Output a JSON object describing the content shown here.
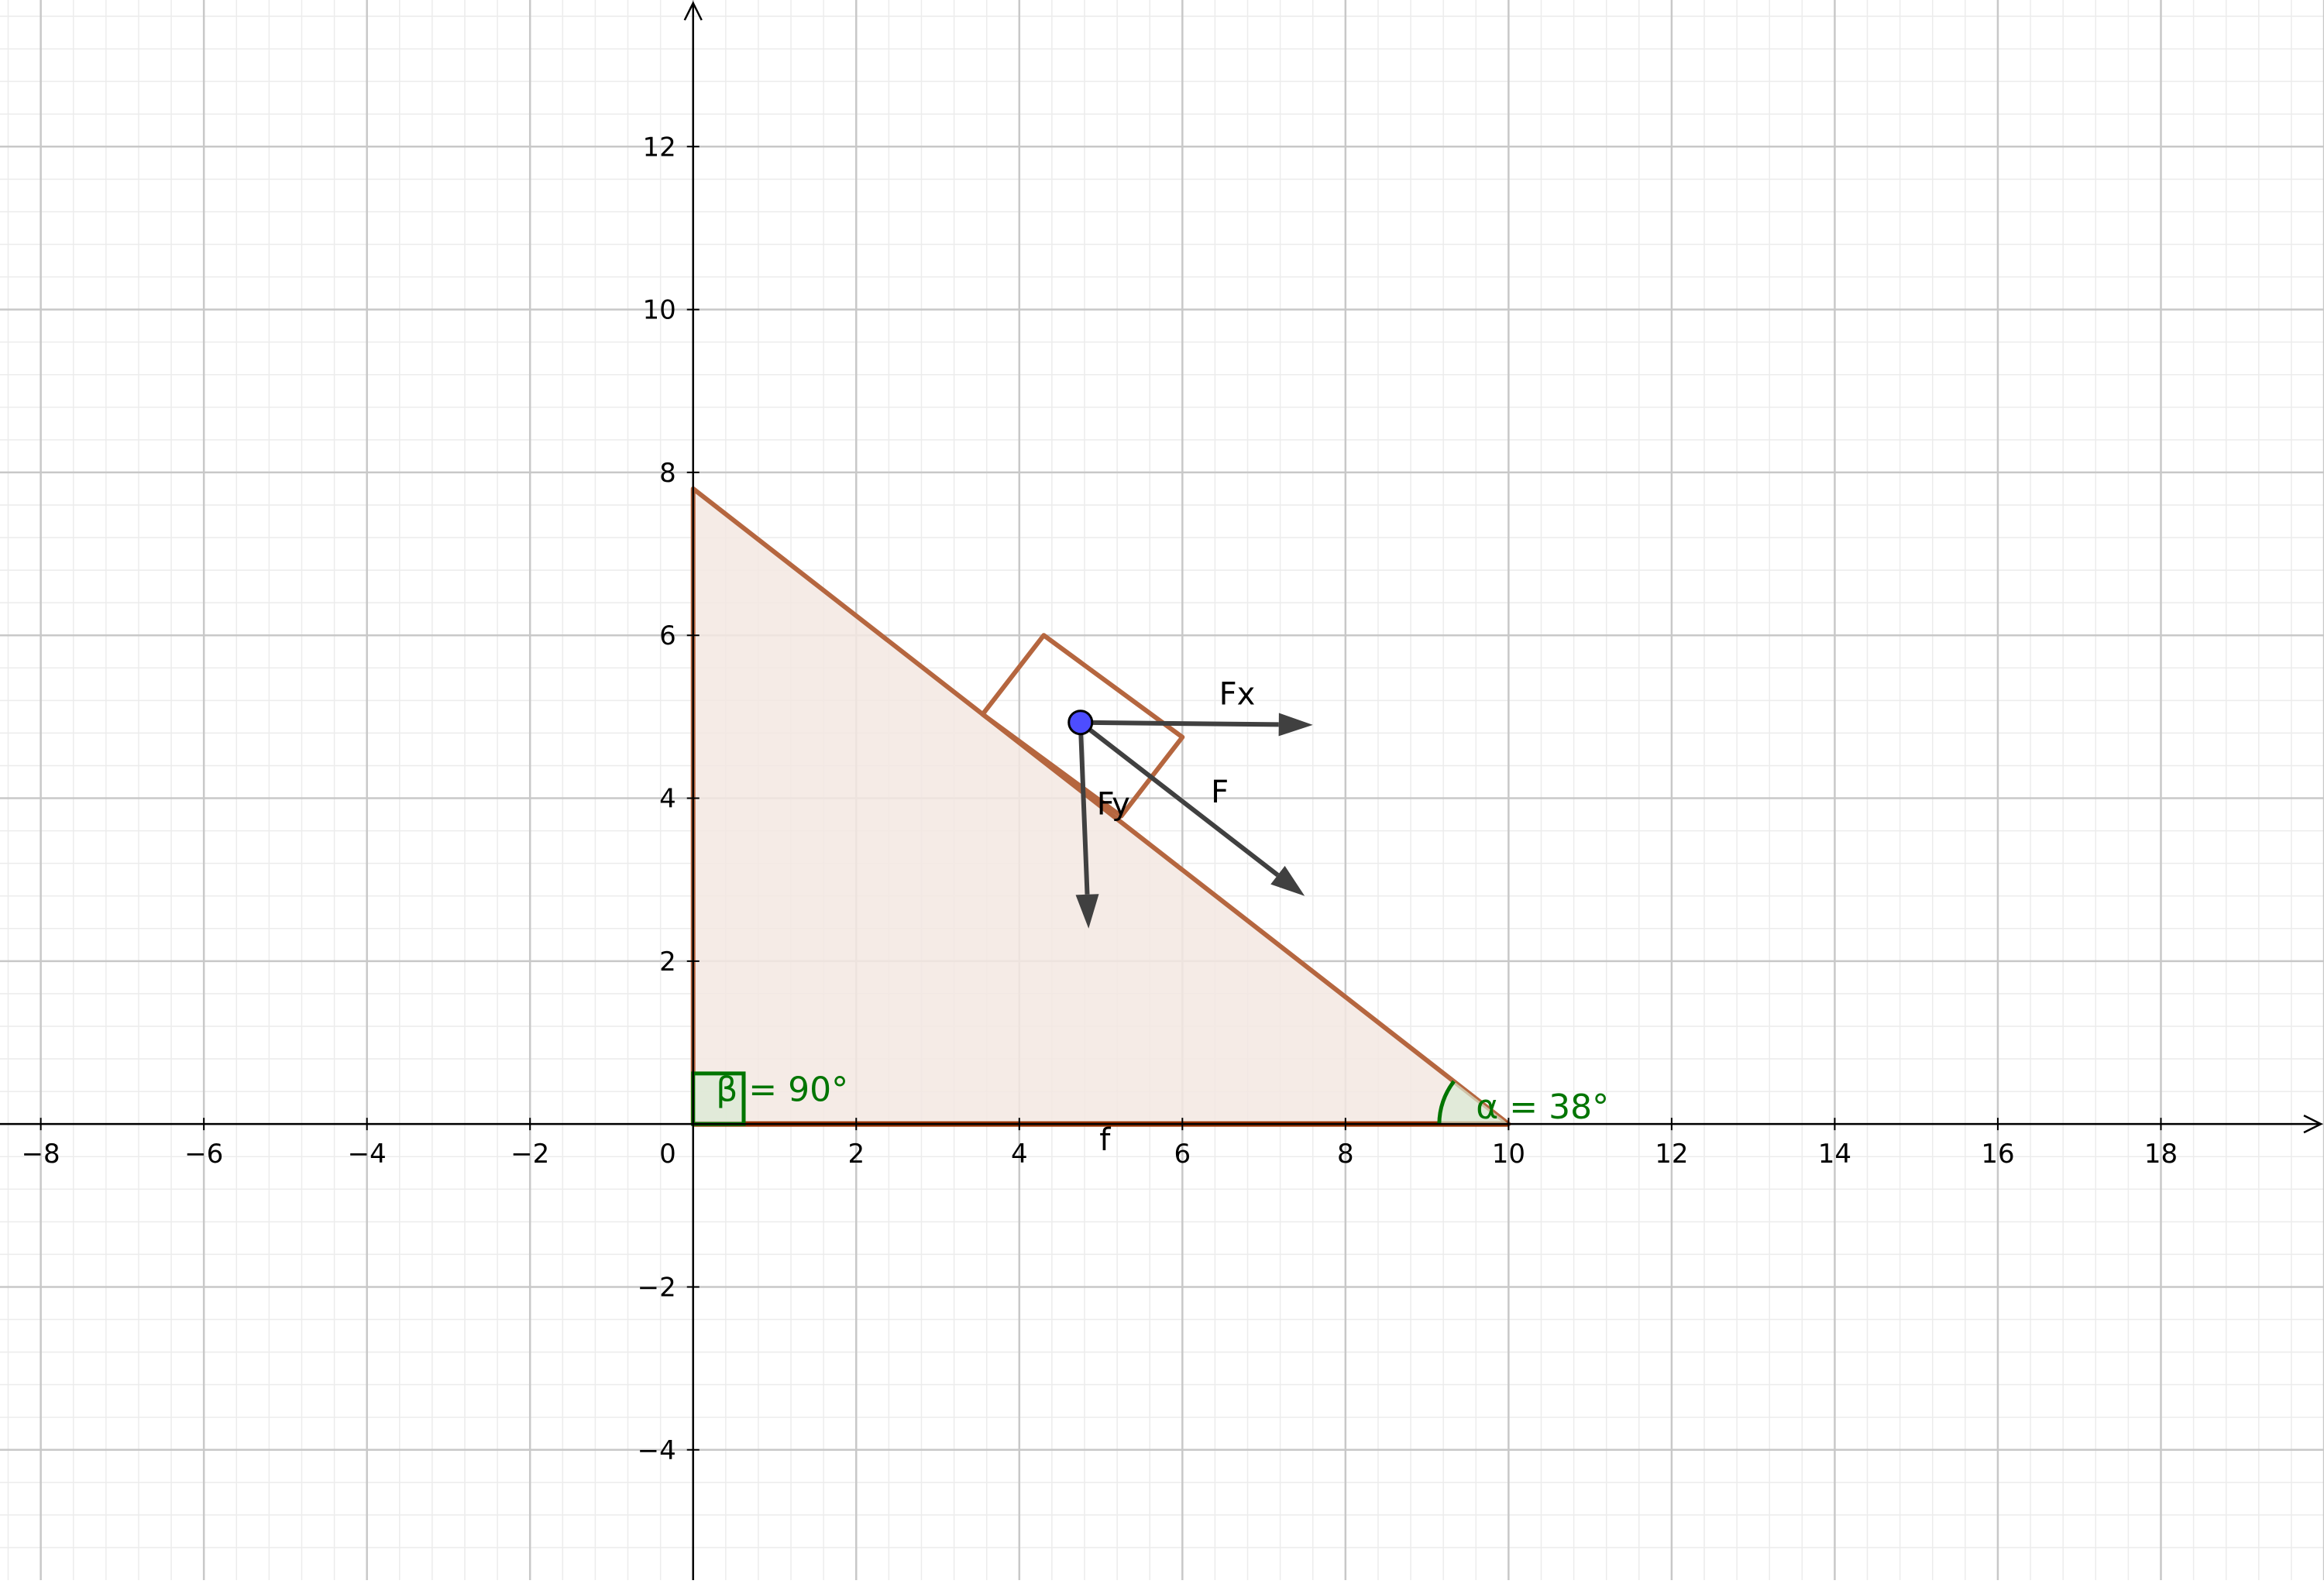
{
  "view": {
    "x_range": [
      -8.5,
      20.0
    ],
    "y_range": [
      -5.6,
      13.8
    ],
    "grid": true,
    "major_grid_step": 2,
    "minor_grid_step": 0.4
  },
  "axes": {
    "x_tick_values": [
      -8,
      -6,
      -4,
      -2,
      2,
      4,
      6,
      8,
      10,
      12,
      14,
      16,
      18
    ],
    "x_tick_labels": [
      "−8",
      "−6",
      "−4",
      "−2",
      "2",
      "4",
      "6",
      "8",
      "10",
      "12",
      "14",
      "16",
      "18"
    ],
    "y_tick_values": [
      -4,
      -2,
      2,
      4,
      6,
      8,
      10,
      12
    ],
    "y_tick_labels": [
      "−4",
      "−2",
      "2",
      "4",
      "6",
      "8",
      "10",
      "12"
    ],
    "origin_label": "0"
  },
  "triangle": {
    "vertices": [
      [
        0,
        0
      ],
      [
        10,
        0
      ],
      [
        0,
        7.8
      ]
    ],
    "fill": "#f3e7e2",
    "stroke": "#b5663f",
    "base_color": "#993300",
    "base_label": "f",
    "base_label_pos": [
      5.05,
      -0.32
    ]
  },
  "block": {
    "vertices": [
      [
        3.55,
        5.03
      ],
      [
        4.3,
        6.0
      ],
      [
        6.0,
        4.75
      ],
      [
        5.25,
        3.78
      ]
    ],
    "stroke": "#b5663f"
  },
  "point": {
    "pos": [
      4.75,
      4.93
    ],
    "fill": "#4d4dff"
  },
  "vectors": [
    {
      "name": "F",
      "from": [
        4.75,
        4.93
      ],
      "to": [
        7.5,
        2.8
      ],
      "label_pos": [
        6.35,
        3.95
      ]
    },
    {
      "name": "Fx",
      "from": [
        4.75,
        4.93
      ],
      "to": [
        7.6,
        4.9
      ],
      "label_pos": [
        6.45,
        5.15
      ]
    },
    {
      "name": "Fy",
      "from": [
        4.75,
        4.93
      ],
      "to": [
        4.85,
        2.4
      ],
      "label_pos": [
        4.95,
        3.8
      ]
    }
  ],
  "vector_color": "#404040",
  "angles": [
    {
      "name": "alpha",
      "label": "α = 38°",
      "vertex": [
        10,
        0
      ],
      "value_deg": 38,
      "label_pos": [
        9.6,
        0.07
      ]
    },
    {
      "name": "beta",
      "label": "β = 90°",
      "vertex": [
        0,
        0
      ],
      "value_deg": 90,
      "label_pos": [
        0.28,
        0.28
      ]
    }
  ],
  "angle_color": "#007500",
  "angle_fill": "#d9ead3"
}
